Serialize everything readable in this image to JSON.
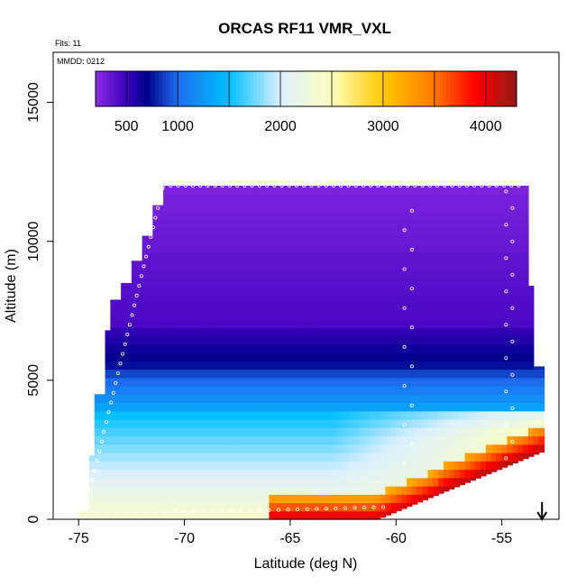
{
  "chart_data": {
    "type": "heatmap",
    "title": "ORCAS RF11 VMR_VXL",
    "annotations": [
      "Flts: 11",
      "MMDD: 0212"
    ],
    "xlabel": "Latitude (deg N)",
    "ylabel": "Altitude (m)",
    "xlim": [
      -76.2,
      -52.3
    ],
    "ylim": [
      0,
      16800
    ],
    "x_ticks": [
      -75,
      -70,
      -65,
      -60,
      -55
    ],
    "x_tick_labels": [
      "-75",
      "-70",
      "-65",
      "-60",
      "-55"
    ],
    "y_ticks": [
      0,
      5000,
      10000,
      15000
    ],
    "y_tick_labels": [
      "0",
      "5000",
      "10000",
      "15000"
    ],
    "grid": false,
    "colorbar": {
      "placement": "top",
      "range": [
        200,
        4300
      ],
      "ticks": [
        500,
        1000,
        2000,
        3000,
        4000
      ],
      "tick_labels": [
        "500",
        "1000",
        "2000",
        "3000",
        "4000"
      ],
      "colors": [
        "#8a2be2",
        "#00008b",
        "#1e90ff",
        "#00bfff",
        "#f0f8ff",
        "#ffff00",
        "#ffa500",
        "#ff0000",
        "#9b1c1c"
      ]
    },
    "field": {
      "lat_range": [
        -75.0,
        -53.0
      ],
      "top_altitude_m": 12000,
      "description_values": "VMR_VXL ppmv, high (3000-4200) near surface in north, ~1500-2500 in lower troposphere south, ~200-500 above 7000 m"
    },
    "flight_track_note": "white circles mark flight track points",
    "arrow": {
      "latitude": -53.1,
      "direction": "down"
    }
  }
}
